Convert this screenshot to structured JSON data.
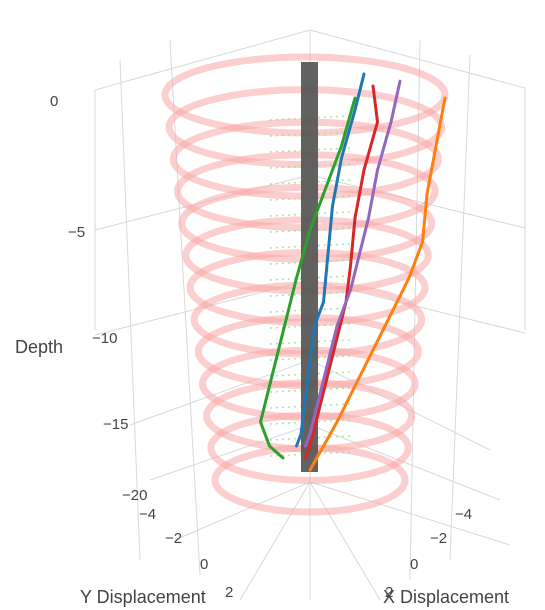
{
  "chart_data": {
    "type": "line",
    "subtype": "3d-scatter-line",
    "title": "",
    "axes": {
      "z": {
        "label": "Depth",
        "ticks": [
          0,
          -5,
          -10,
          -15,
          -20
        ],
        "range": [
          -20,
          0
        ]
      },
      "x": {
        "label": "X Displacement",
        "ticks": [
          -4,
          -2,
          0,
          2
        ],
        "range": [
          -4,
          2
        ]
      },
      "y": {
        "label": "Y Displacement",
        "ticks": [
          -4,
          -2,
          0,
          2
        ],
        "range": [
          -4,
          2
        ]
      }
    },
    "grid": true,
    "legend": "none",
    "background_elements": [
      {
        "name": "pile",
        "color": "#555555",
        "depth_range": [
          -17,
          0
        ]
      },
      {
        "name": "outer-rings",
        "color": "#f7a8a8",
        "rings": 13
      },
      {
        "name": "inner-sensors",
        "color": "#9be08a"
      }
    ],
    "series": [
      {
        "color": "#1f77b4",
        "x": [
          1.2,
          1.0,
          0.7,
          0.5,
          0.4,
          0.3,
          0.1,
          0.0,
          -0.1,
          -0.2,
          -0.3
        ],
        "z": [
          -0.5,
          -2,
          -4,
          -6,
          -8,
          -10,
          -11,
          -12.5,
          -14,
          -15.5,
          -16
        ]
      },
      {
        "color": "#d62728",
        "x": [
          1.4,
          1.5,
          1.2,
          1.0,
          0.9,
          0.8,
          0.6,
          0.4,
          0.2,
          0.0,
          -0.1
        ],
        "z": [
          -1,
          -2.5,
          -4.5,
          -6.5,
          -8.5,
          -10,
          -11.5,
          -13,
          -14.5,
          -16,
          -16.5
        ]
      },
      {
        "color": "#9467bd",
        "x": [
          2.0,
          1.8,
          1.5,
          1.3,
          1.1,
          0.9,
          0.6,
          0.4,
          0.2,
          0.0,
          -0.1
        ],
        "z": [
          -0.8,
          -2.5,
          -4.5,
          -6.5,
          -8,
          -9.5,
          -11,
          -12.5,
          -14,
          -15.5,
          -16
        ]
      },
      {
        "color": "#ff7f0e",
        "x": [
          3.0,
          2.8,
          2.6,
          2.5,
          2.2,
          1.8,
          1.4,
          1.0,
          0.6,
          0.3,
          0.0
        ],
        "z": [
          -1.5,
          -3.5,
          -5.5,
          -7.5,
          -9,
          -10.5,
          -12,
          -13.5,
          -15,
          -16,
          -17
        ]
      },
      {
        "color": "#2ca02c",
        "x": [
          1.0,
          0.7,
          0.3,
          0.0,
          -0.3,
          -0.5,
          -0.7,
          -0.9,
          -1.1,
          -0.9,
          -0.6
        ],
        "z": [
          -1.5,
          -3.5,
          -5.5,
          -7,
          -9,
          -10.5,
          -12,
          -13.5,
          -15,
          -16,
          -16.5
        ]
      }
    ]
  }
}
